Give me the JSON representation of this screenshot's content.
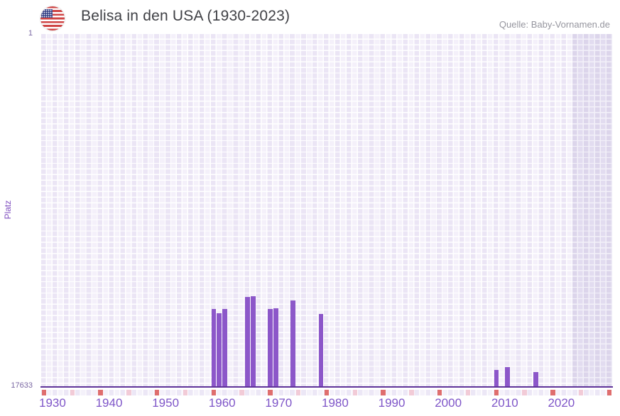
{
  "header": {
    "title": "Belisa in den USA (1930-2023)",
    "source": "Quelle: Baby-Vornamen.de",
    "flag_icon": "us-flag-icon"
  },
  "chart_data": {
    "type": "bar",
    "title": "Belisa in den USA (1930-2023)",
    "ylabel": "Platz",
    "y_axis": {
      "top_tick": "1",
      "bottom_tick": "17633",
      "min": 1,
      "max": 17633,
      "inverted": true
    },
    "x_axis": {
      "first_year": 1928,
      "last_year": 2028,
      "tick_labels": [
        "1930",
        "1940",
        "1950",
        "1960",
        "1970",
        "1980",
        "1990",
        "2000",
        "2010",
        "2020"
      ]
    },
    "points": [
      {
        "year": 1958,
        "platz": 13750
      },
      {
        "year": 1959,
        "platz": 13950
      },
      {
        "year": 1960,
        "platz": 13750
      },
      {
        "year": 1964,
        "platz": 13150
      },
      {
        "year": 1965,
        "platz": 13100
      },
      {
        "year": 1968,
        "platz": 13750
      },
      {
        "year": 1969,
        "platz": 13700
      },
      {
        "year": 1972,
        "platz": 13300
      },
      {
        "year": 1977,
        "platz": 14000
      },
      {
        "year": 2008,
        "platz": 16800
      },
      {
        "year": 2010,
        "platz": 16650
      },
      {
        "year": 2015,
        "platz": 16900
      }
    ],
    "marker_row": {
      "red_years": [
        1928,
        1938,
        1948,
        1958,
        1968,
        1978,
        1988,
        1998,
        2008,
        2018,
        2028
      ],
      "pink_years": [
        1933,
        1943,
        1953,
        1963,
        1973,
        1983,
        1993,
        2003,
        2013,
        2023
      ]
    },
    "no_data_region": {
      "from_year": 2022,
      "to_year": 2028
    },
    "layout": {
      "grid": true,
      "legend": "none"
    },
    "colors": {
      "bar": "#8c57c9",
      "axis_line": "#5e3399",
      "red_marker": "#df6e6e",
      "pink_marker": "#f2cbd7",
      "grid_col_a": "#ebe5f5",
      "grid_col_b": "#f4f0fa",
      "shade_col_a": "#dcd5eb",
      "shade_col_b": "#e2dcf0",
      "tick_label": "#7e55c8",
      "small_label": "#7b68a3",
      "title_text": "#3f4045",
      "source_text": "#95959e"
    }
  }
}
